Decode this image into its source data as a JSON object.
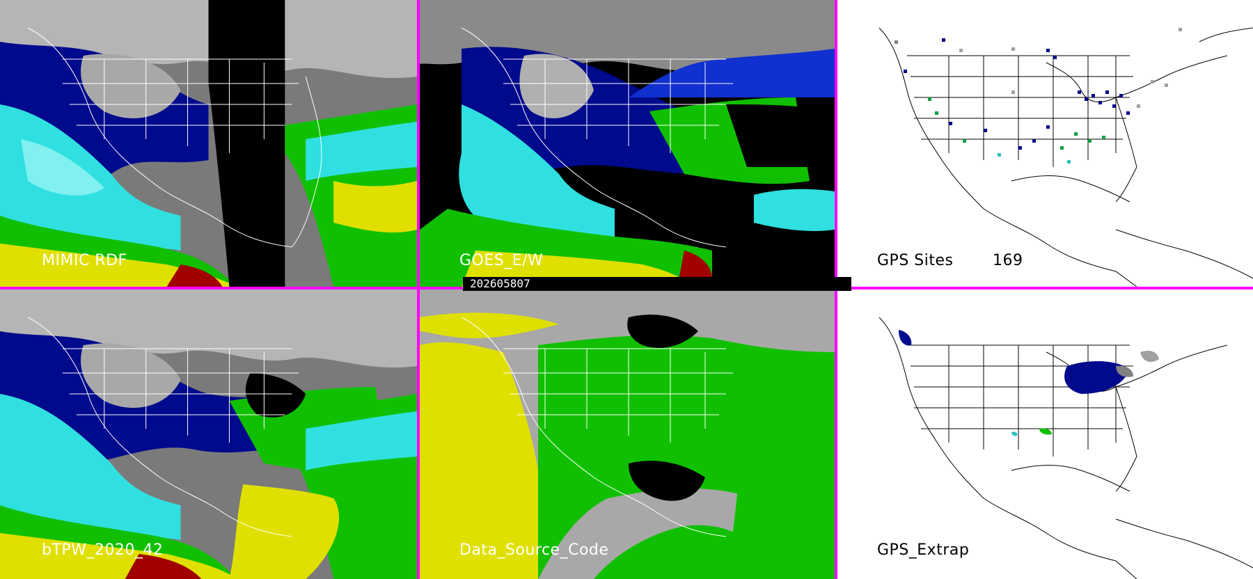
{
  "panels": [
    {
      "id": "mimic-rdf",
      "label": "MIMIC RDF"
    },
    {
      "id": "goes-ew",
      "label": "GOES_E/W"
    },
    {
      "id": "gps-sites",
      "label": "GPS Sites",
      "count": "169"
    },
    {
      "id": "btpw",
      "label": "bTPW_2020_42"
    },
    {
      "id": "data-source-code",
      "label": "Data_Source_Code"
    },
    {
      "id": "gps-extrap",
      "label": "GPS_Extrap"
    }
  ],
  "timestamp": "202605807",
  "colors": {
    "border": "#ff00ff",
    "cloud_gray": "#9a9a9a",
    "dry_navy": "#000a8c",
    "mid_blue": "#1030d0",
    "cyan": "#30e0e0",
    "green": "#10c000",
    "yellow": "#e0e000",
    "dark_red": "#a00000",
    "source_gray": "#a8a8a8"
  }
}
